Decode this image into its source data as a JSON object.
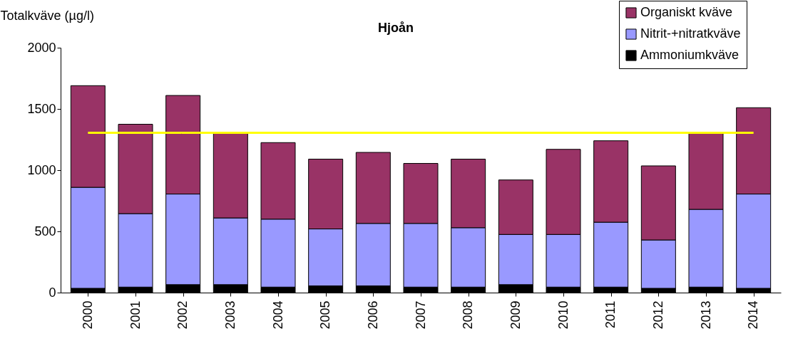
{
  "chart_data": {
    "type": "bar",
    "title": "Hjoån",
    "ylabel": "Totalkväve (µg/l)",
    "categories": [
      "2000",
      "2001",
      "2002",
      "2003",
      "2004",
      "2005",
      "2006",
      "2007",
      "2008",
      "2009",
      "2010",
      "2011",
      "2012",
      "2013",
      "2014"
    ],
    "stacked": true,
    "series": [
      {
        "name": "Ammoniumkväve",
        "color": "#000000",
        "values": [
          35,
          45,
          65,
          65,
          45,
          55,
          55,
          45,
          45,
          65,
          45,
          45,
          35,
          45,
          35
        ]
      },
      {
        "name": "Nitrit-+nitratkväve",
        "color": "#9999ff",
        "values": [
          825,
          600,
          740,
          545,
          555,
          465,
          510,
          520,
          485,
          410,
          430,
          530,
          395,
          635,
          770
        ]
      },
      {
        "name": "Organiskt kväve",
        "color": "#993366",
        "values": [
          830,
          730,
          805,
          695,
          625,
          570,
          580,
          490,
          560,
          445,
          695,
          665,
          605,
          625,
          705
        ]
      }
    ],
    "ylim": [
      0,
      2000
    ],
    "yticks": [
      0,
      500,
      1000,
      1500,
      2000
    ],
    "ref_lines": [
      {
        "axis": "y",
        "value": 1305,
        "label": null,
        "color": "#ffff00"
      }
    ],
    "grid": false,
    "legend": "top right"
  }
}
